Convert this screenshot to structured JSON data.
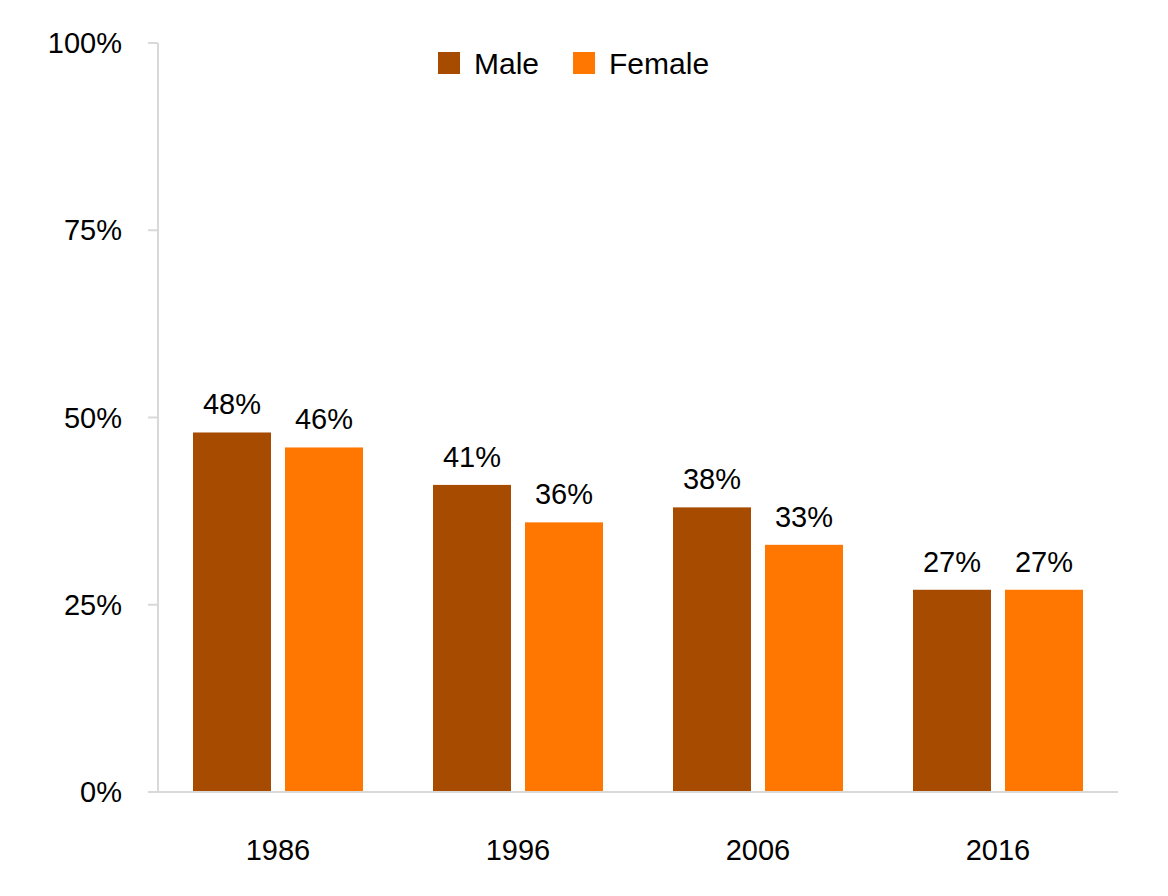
{
  "chart_data": {
    "type": "bar",
    "categories": [
      "1986",
      "1996",
      "2006",
      "2016"
    ],
    "series": [
      {
        "name": "Male",
        "color": "#a64b00",
        "values": [
          48,
          41,
          38,
          27
        ],
        "value_labels": [
          "48%",
          "41%",
          "38%",
          "27%"
        ]
      },
      {
        "name": "Female",
        "color": "#ff7700",
        "values": [
          46,
          36,
          33,
          27
        ],
        "value_labels": [
          "46%",
          "36%",
          "33%",
          "27%"
        ]
      }
    ],
    "ylim": [
      0,
      100
    ],
    "yticks": [
      {
        "value": 0,
        "label": "0%"
      },
      {
        "value": 25,
        "label": "25%"
      },
      {
        "value": 50,
        "label": "50%"
      },
      {
        "value": 75,
        "label": "75%"
      },
      {
        "value": 100,
        "label": "100%"
      }
    ],
    "grid": false,
    "legend": "top",
    "data_labels": true
  }
}
